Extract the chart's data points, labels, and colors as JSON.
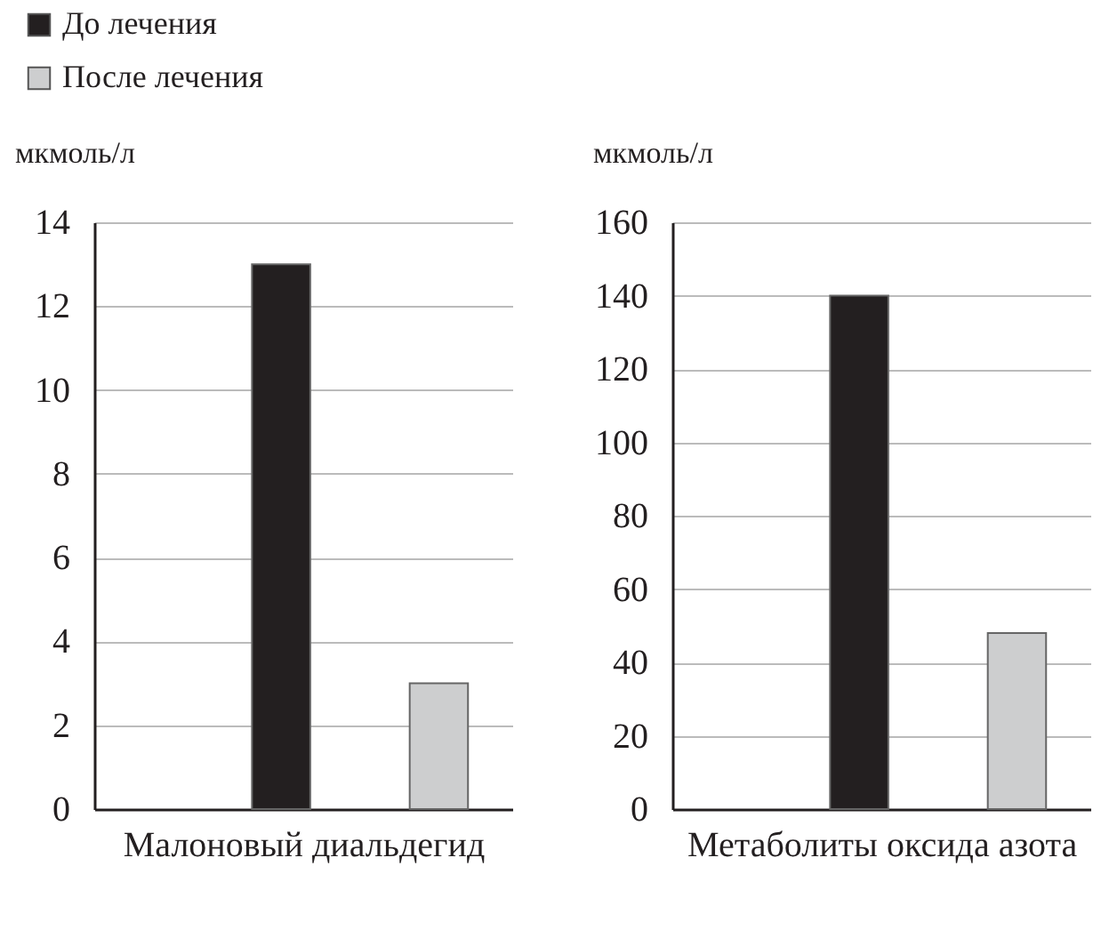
{
  "chart_data": [
    {
      "type": "bar",
      "ylabel": "мкмоль/л",
      "xlabel": "Малоновый диальдегид",
      "categories": [
        null
      ],
      "series": [
        {
          "name": "До лечения",
          "color": "#231f20",
          "values": [
            13
          ]
        },
        {
          "name": "После лечения",
          "color": "#cdcecf",
          "values": [
            3
          ]
        }
      ],
      "ylim": [
        0,
        14
      ],
      "yticks": [
        0,
        2,
        4,
        6,
        8,
        10,
        12,
        14
      ],
      "grid": "y",
      "legend": "top left"
    },
    {
      "type": "bar",
      "ylabel": "мкмоль/л",
      "xlabel": "Метаболиты оксида азота",
      "categories": [
        null
      ],
      "series": [
        {
          "color": "#231f20",
          "values": [
            140
          ]
        },
        {
          "color": "#cdcecf",
          "values": [
            48
          ]
        }
      ],
      "ylim": [
        0,
        160
      ],
      "yticks": [
        0,
        20,
        40,
        60,
        80,
        100,
        120,
        140,
        160
      ],
      "grid": "y"
    }
  ]
}
